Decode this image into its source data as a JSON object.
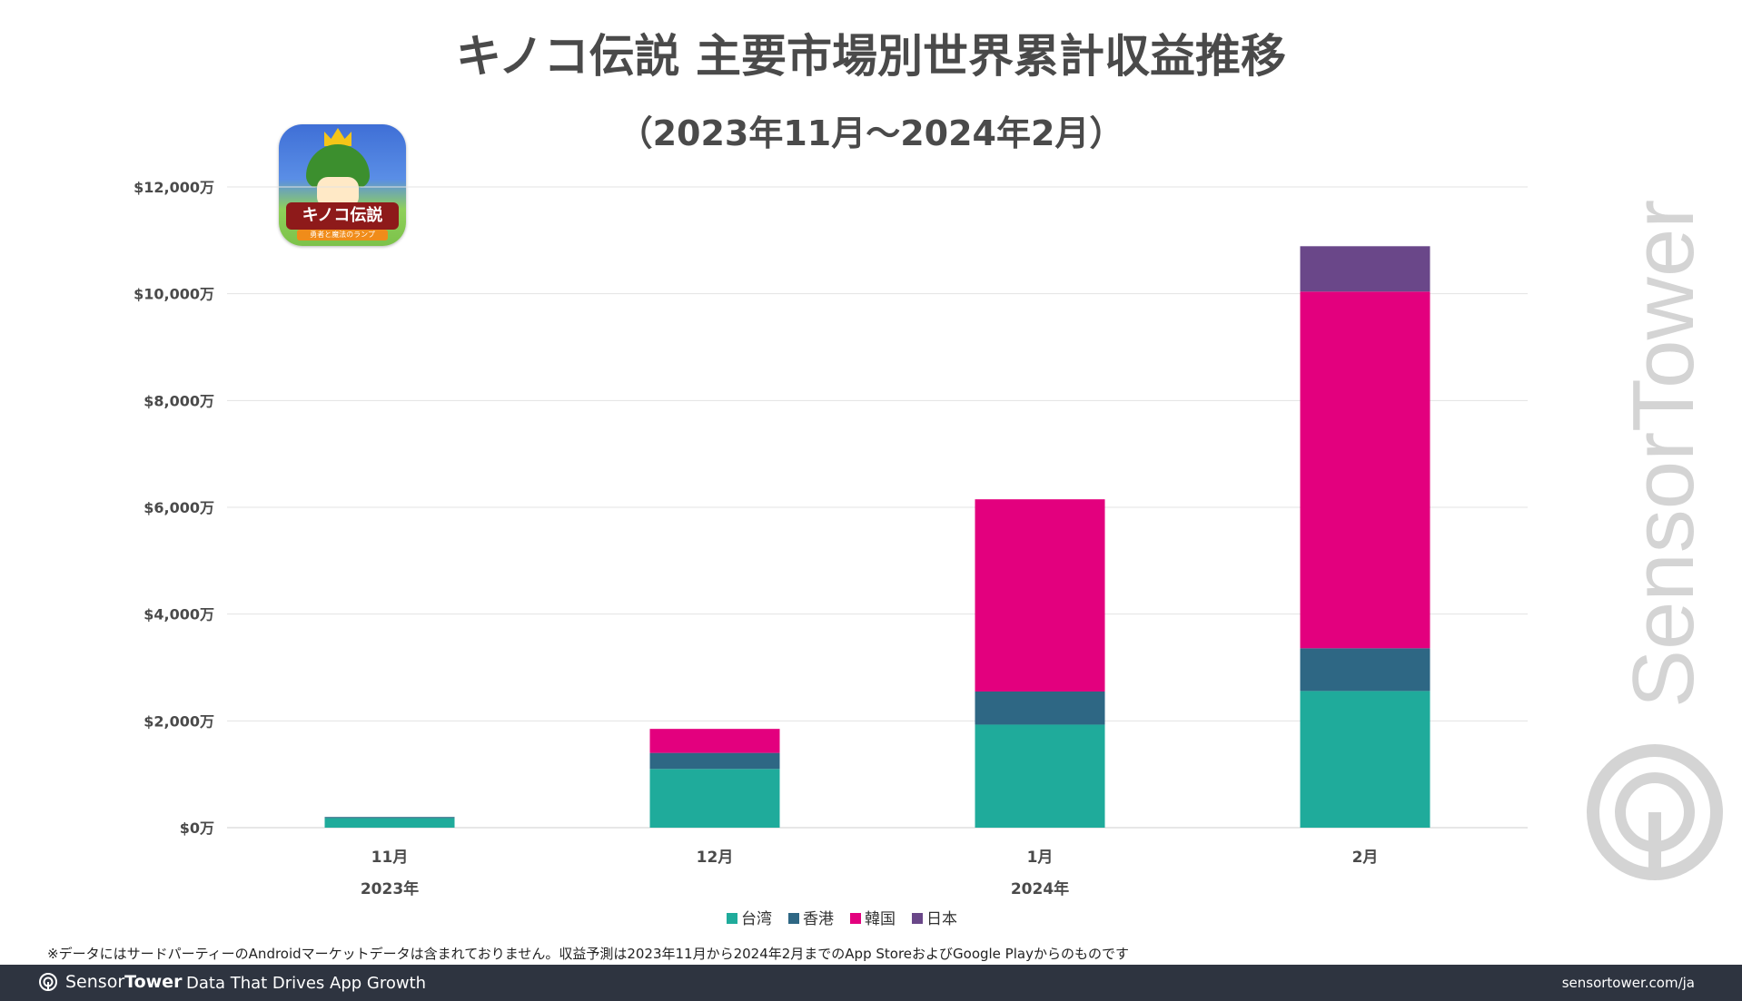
{
  "title": "キノコ伝説 主要市場別世界累計収益推移",
  "subtitle": "（2023年11月～2024年2月）",
  "app_icon": {
    "logo_text": "キノコ伝説",
    "sub_text": "勇者と魔法のランプ"
  },
  "chart_data": {
    "type": "bar",
    "stacked": true,
    "categories": [
      "11月",
      "12月",
      "1月",
      "2月"
    ],
    "year_labels": [
      {
        "label": "2023年",
        "category_index": 0
      },
      {
        "label": "2024年",
        "category_index": 2
      }
    ],
    "series": [
      {
        "name": "台湾",
        "color": "#1FAB9B",
        "values": [
          180,
          1100,
          1930,
          2560
        ]
      },
      {
        "name": "香港",
        "color": "#2E6784",
        "values": [
          20,
          300,
          620,
          800
        ]
      },
      {
        "name": "韓国",
        "color": "#E3007E",
        "values": [
          0,
          450,
          3600,
          6680
        ]
      },
      {
        "name": "日本",
        "color": "#6A4789",
        "values": [
          0,
          0,
          0,
          850
        ]
      }
    ],
    "ylim": [
      0,
      12000
    ],
    "yticks": [
      0,
      2000,
      4000,
      6000,
      8000,
      10000,
      12000
    ],
    "ytick_labels": [
      "$0万",
      "$2,000万",
      "$4,000万",
      "$6,000万",
      "$8,000万",
      "$10,000万",
      "$12,000万"
    ],
    "grid": true,
    "legend_position": "bottom"
  },
  "watermark_text": "SensorTower",
  "footnote": "※データにはサードパーティーのAndroidマーケットデータは含まれておりません。収益予測は2023年11月から2024年2月までのApp StoreおよびGoogle Playからのものです",
  "footer": {
    "brand_sensor": "Sensor",
    "brand_tower": "Tower",
    "tagline": "Data That Drives App Growth",
    "url": "sensortower.com/ja"
  }
}
